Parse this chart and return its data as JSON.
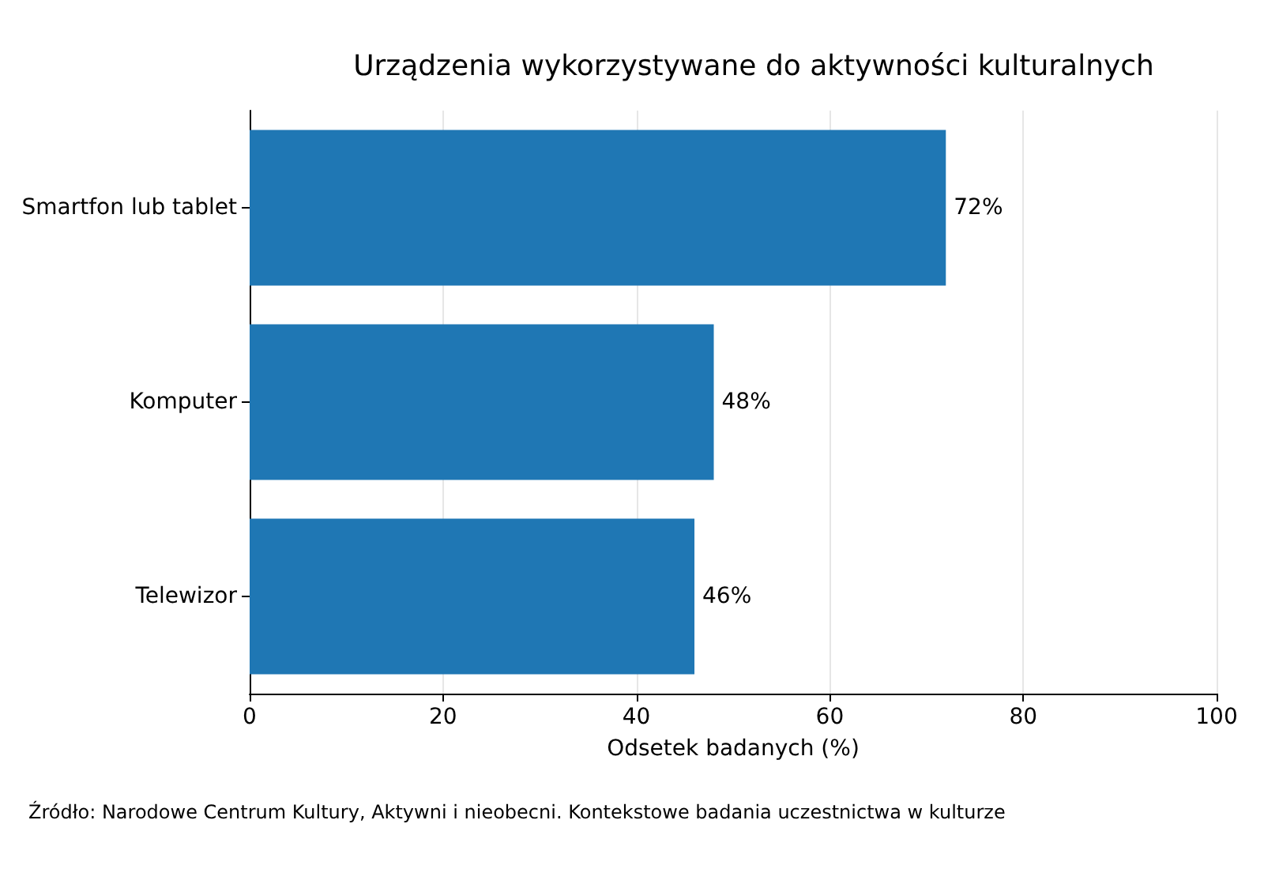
{
  "chart_data": {
    "type": "bar",
    "orientation": "horizontal",
    "title": "Urządzenia wykorzystywane do aktywności kulturalnych",
    "xlabel": "Odsetek badanych (%)",
    "categories": [
      "Smartfon lub tablet",
      "Komputer",
      "Telewizor"
    ],
    "values": [
      72,
      48,
      46
    ],
    "color": "#1f77b4",
    "value_labels": [
      "72%",
      "48%",
      "46%"
    ],
    "xlim": [
      0,
      100
    ],
    "xticks": [
      0,
      20,
      40,
      60,
      80,
      100
    ],
    "grid": "x",
    "annotations": [
      "Źródło: Narodowe Centrum Kultury, Aktywni i nieobecni. Kontekstowe badania uczestnictwa w kulturze"
    ]
  }
}
